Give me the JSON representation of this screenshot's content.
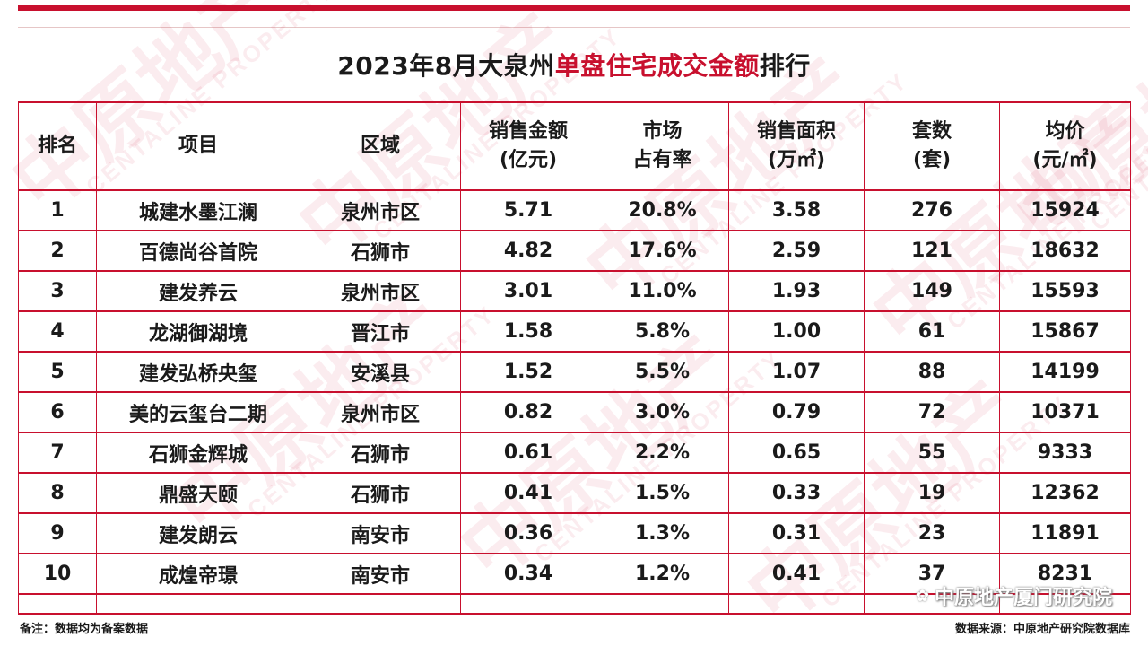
{
  "title": {
    "prefix": "2023年8月大泉州",
    "highlight": "单盘住宅成交金额",
    "suffix": "排行"
  },
  "watermark": {
    "cn": "中原地产",
    "en": "CENTALINE PROPERTY"
  },
  "colors": {
    "accent": "#c8102e"
  },
  "table": {
    "headers": [
      [
        "排名"
      ],
      [
        "项目"
      ],
      [
        "区域"
      ],
      [
        "销售金额",
        "(亿元)"
      ],
      [
        "市场",
        "占有率"
      ],
      [
        "销售面积",
        "(万㎡)"
      ],
      [
        "套数",
        "(套)"
      ],
      [
        "均价",
        "(元/㎡)"
      ]
    ],
    "rows": [
      [
        "1",
        "城建水墨江澜",
        "泉州市区",
        "5.71",
        "20.8%",
        "3.58",
        "276",
        "15924"
      ],
      [
        "2",
        "百德尚谷首院",
        "石狮市",
        "4.82",
        "17.6%",
        "2.59",
        "121",
        "18632"
      ],
      [
        "3",
        "建发养云",
        "泉州市区",
        "3.01",
        "11.0%",
        "1.93",
        "149",
        "15593"
      ],
      [
        "4",
        "龙湖御湖境",
        "晋江市",
        "1.58",
        "5.8%",
        "1.00",
        "61",
        "15867"
      ],
      [
        "5",
        "建发弘桥央玺",
        "安溪县",
        "1.52",
        "5.5%",
        "1.07",
        "88",
        "14199"
      ],
      [
        "6",
        "美的云玺台二期",
        "泉州市区",
        "0.82",
        "3.0%",
        "0.79",
        "72",
        "10371"
      ],
      [
        "7",
        "石狮金辉城",
        "石狮市",
        "0.61",
        "2.2%",
        "0.65",
        "55",
        "9333"
      ],
      [
        "8",
        "鼎盛天颐",
        "石狮市",
        "0.41",
        "1.5%",
        "0.33",
        "19",
        "12362"
      ],
      [
        "9",
        "建发朗云",
        "南安市",
        "0.36",
        "1.3%",
        "0.31",
        "23",
        "11891"
      ],
      [
        "10",
        "成煌帝璟",
        "南安市",
        "0.34",
        "1.2%",
        "0.41",
        "37",
        "8231"
      ]
    ]
  },
  "footer": {
    "note": "备注：数据均为备案数据",
    "source": "数据来源：中原地产研究院数据库"
  },
  "brand": {
    "icon": "wechat-icon",
    "text": "中原地产厦门研究院"
  }
}
